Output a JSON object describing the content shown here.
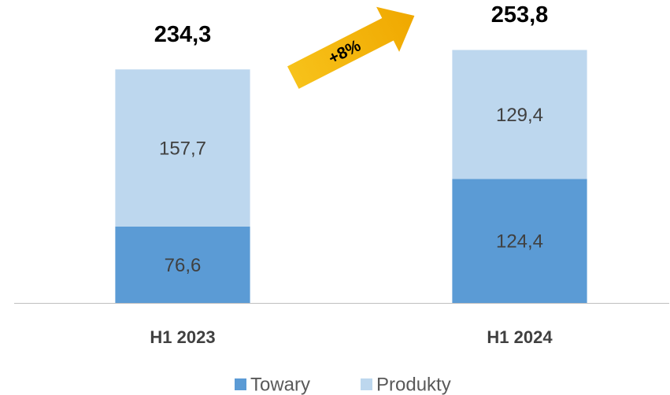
{
  "chart_data": {
    "type": "stacked_bar",
    "categories": [
      "H1 2023",
      "H1 2024"
    ],
    "series": [
      {
        "name": "Towary",
        "color": "#5b9bd5",
        "values": [
          76.6,
          124.4
        ],
        "value_labels": [
          "76,6",
          "124,4"
        ]
      },
      {
        "name": "Produkty",
        "color": "#bdd7ee",
        "values": [
          157.7,
          129.4
        ],
        "value_labels": [
          "157,7",
          "129,4"
        ]
      }
    ],
    "totals": [
      234.3,
      253.8
    ],
    "total_labels": [
      "234,3",
      "253,8"
    ],
    "annotation": "+8%",
    "ylim": [
      0,
      300
    ]
  }
}
